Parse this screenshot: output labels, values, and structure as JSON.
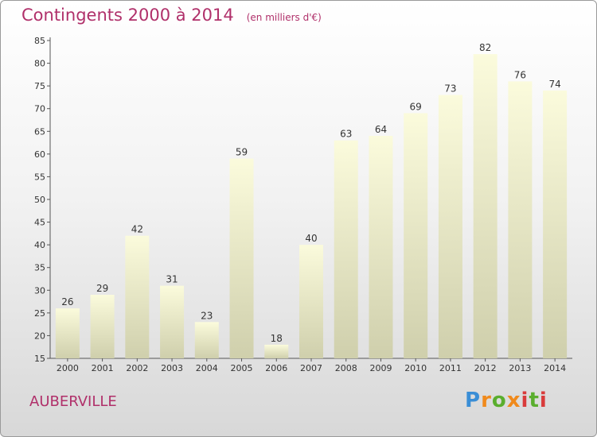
{
  "chart_data": {
    "type": "bar",
    "title": "Contingents 2000 à 2014",
    "unit_label": "(en milliers d'€)",
    "categories": [
      "2000",
      "2001",
      "2002",
      "2003",
      "2004",
      "2005",
      "2006",
      "2007",
      "2008",
      "2009",
      "2010",
      "2011",
      "2012",
      "2013",
      "2014"
    ],
    "values": [
      26,
      29,
      42,
      31,
      23,
      59,
      18,
      40,
      63,
      64,
      69,
      73,
      82,
      76,
      74
    ],
    "ylim": [
      15,
      85
    ],
    "yticks": [
      15,
      20,
      25,
      30,
      35,
      40,
      45,
      50,
      55,
      60,
      65,
      70,
      75,
      80,
      85
    ],
    "grid": false,
    "xlabel": "",
    "ylabel": "",
    "colors": {
      "bar_top": "#fbfbdc",
      "bar_bottom": "#cfcfac",
      "text": "#b0306a"
    }
  },
  "place": "AUBERVILLE",
  "logo": {
    "text": "Proxiti"
  }
}
